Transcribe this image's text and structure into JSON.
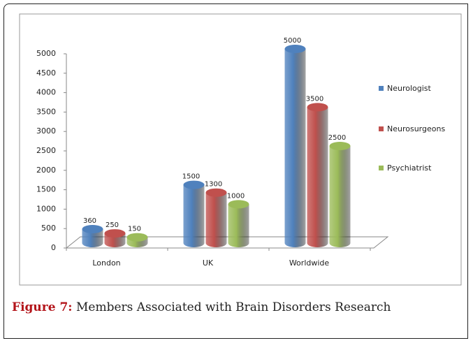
{
  "chart_data": {
    "type": "bar",
    "categories": [
      "London",
      "UK",
      "Worldwide"
    ],
    "series": [
      {
        "name": "Neurologist",
        "color": "#4f81bd",
        "values": [
          360,
          1500,
          5000
        ]
      },
      {
        "name": "Neurosurgeons",
        "color": "#c0504d",
        "values": [
          250,
          1300,
          3500
        ]
      },
      {
        "name": "Psychiatrist",
        "color": "#9bbb59",
        "values": [
          150,
          1000,
          2500
        ]
      }
    ],
    "ylim": [
      0,
      5000
    ],
    "yticks": [
      0,
      500,
      1000,
      1500,
      2000,
      2500,
      3000,
      3500,
      4000,
      4500,
      5000
    ],
    "legend": "right",
    "grid": false
  },
  "caption": {
    "label": "Figure 7:",
    "text": "Members Associated with Brain Disorders Research"
  }
}
